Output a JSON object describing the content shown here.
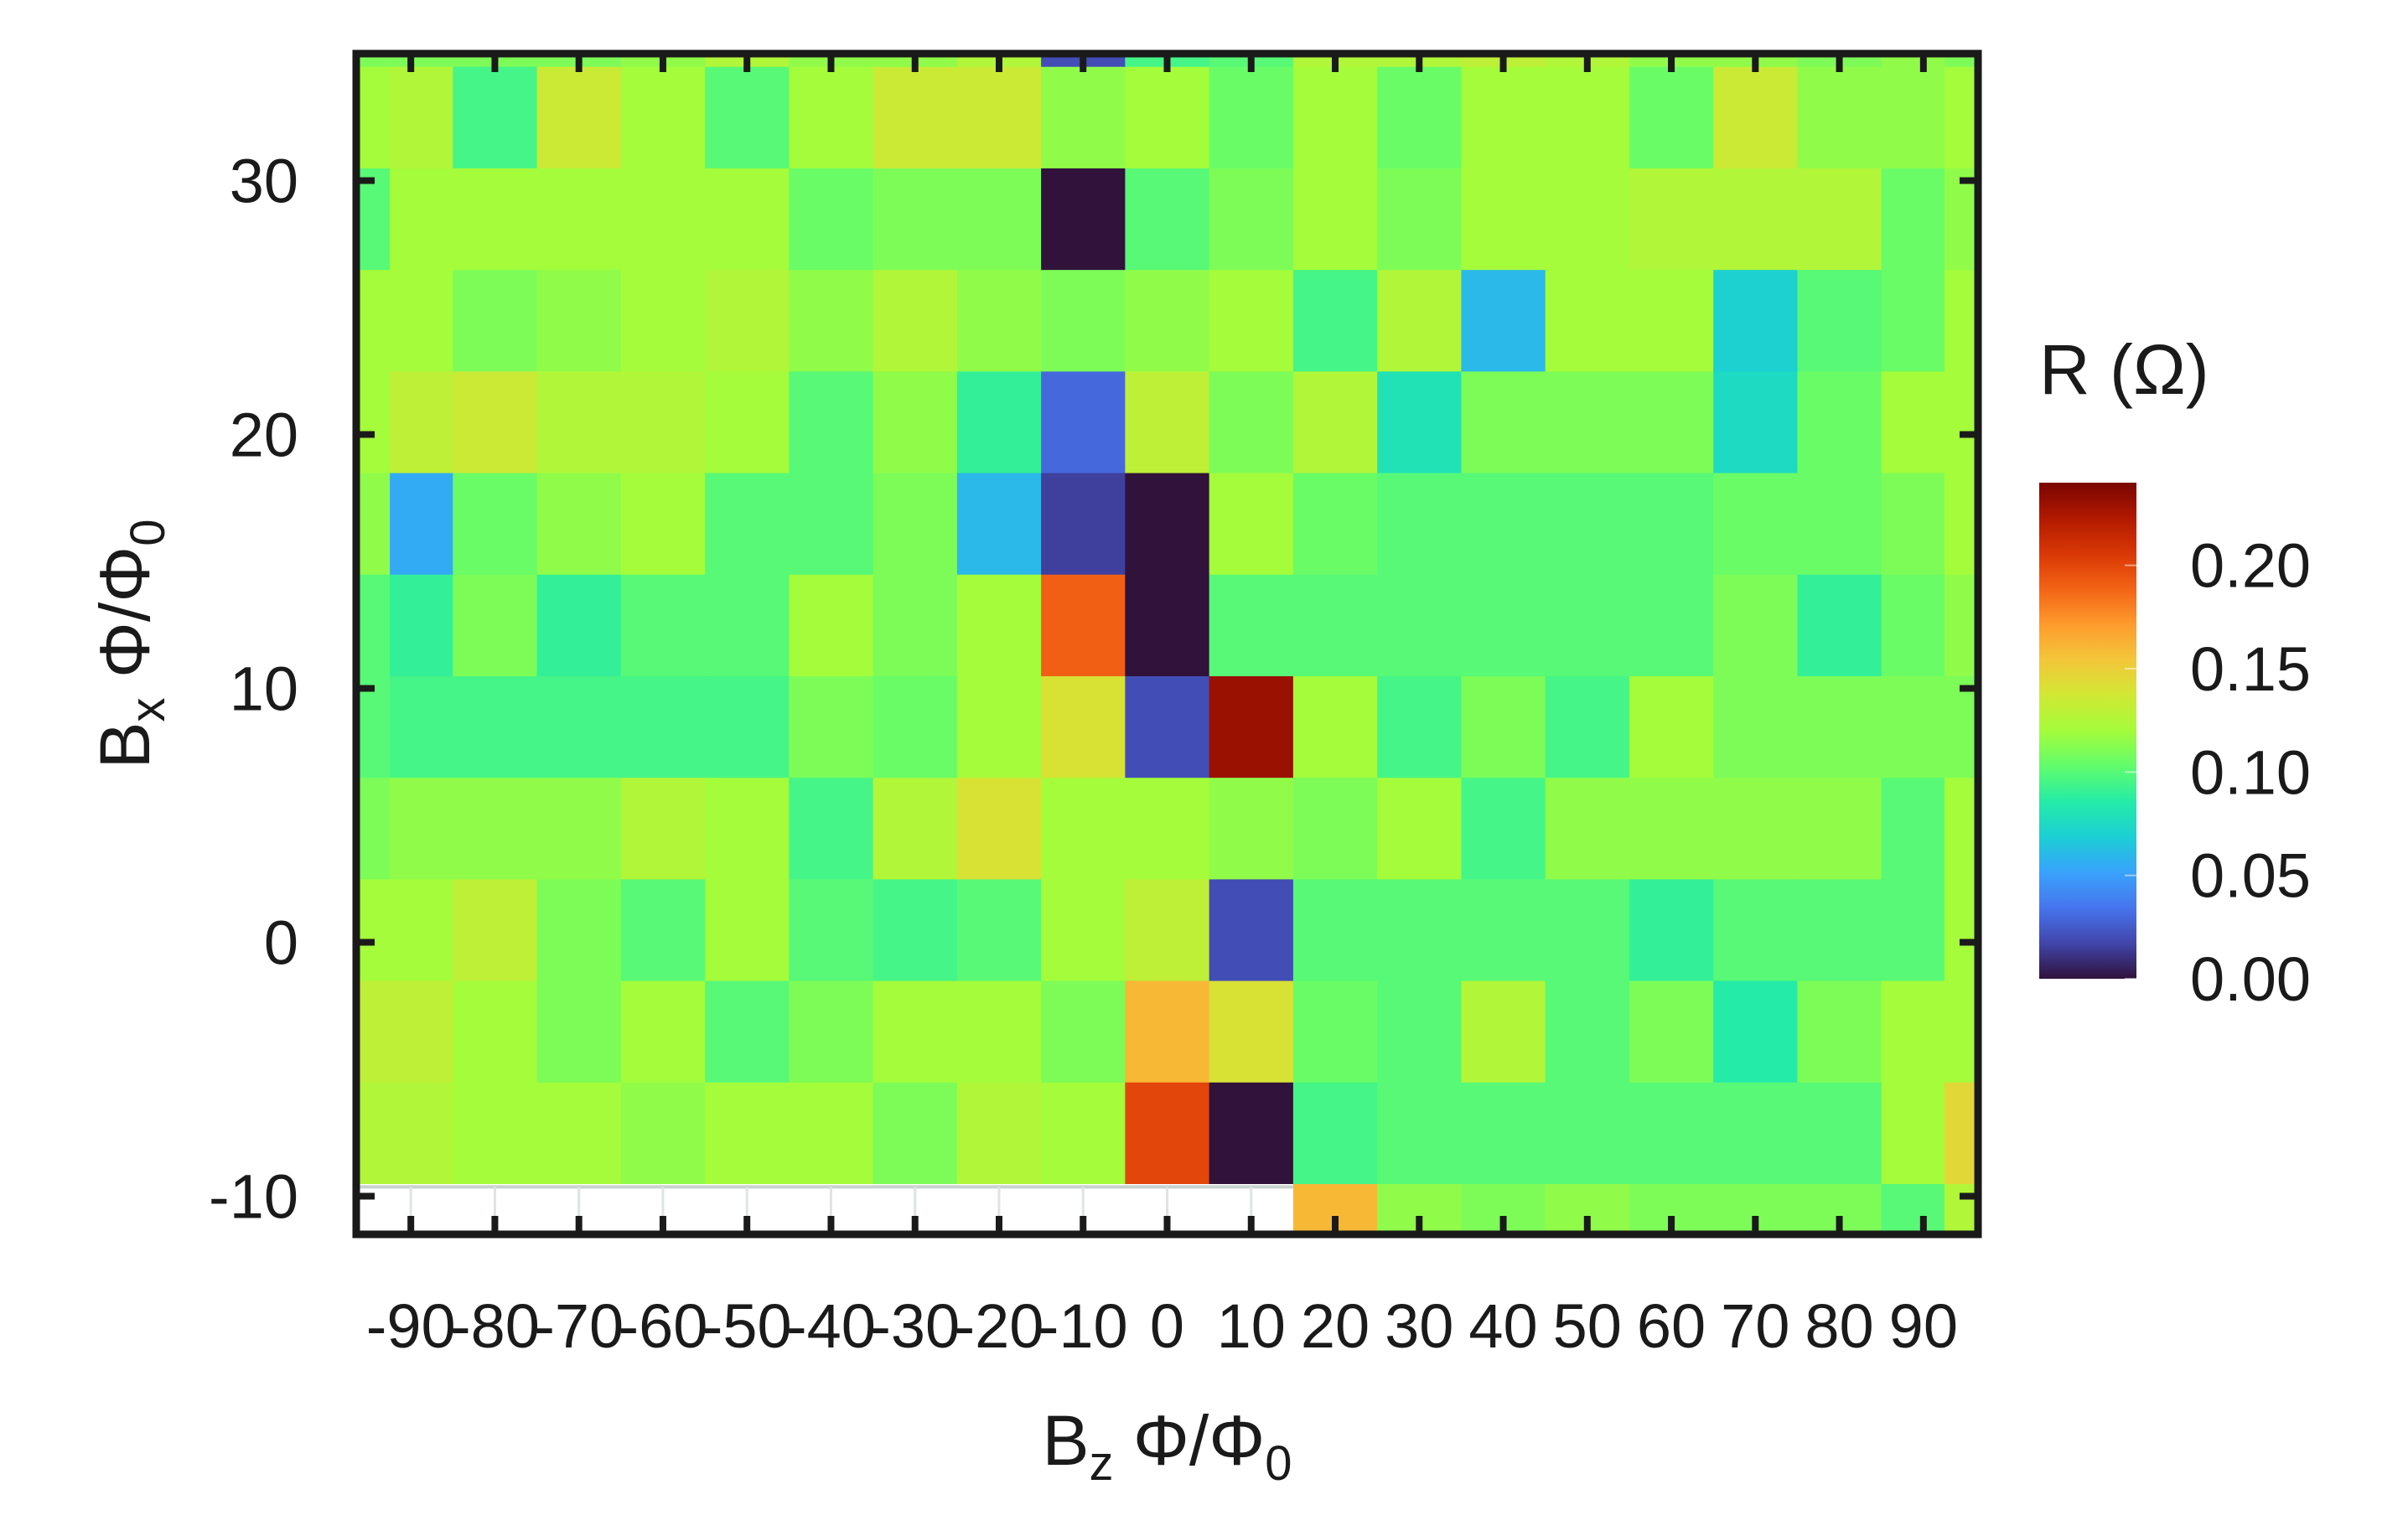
{
  "chart_data": {
    "type": "heatmap",
    "title": "",
    "xlabel": "B_z Φ/Φ_0",
    "ylabel": "B_x Φ/Φ_0",
    "x_title": {
      "main": "B",
      "sub": "z",
      "rest": " Φ/Φ",
      "sub2": "0"
    },
    "y_title": {
      "main": "B",
      "sub": "x",
      "rest": " Φ/Φ",
      "sub2": "0"
    },
    "x": [
      -95,
      -90,
      -80,
      -70,
      -60,
      -50,
      -40,
      -30,
      -20,
      -10,
      0,
      10,
      20,
      30,
      40,
      50,
      60,
      70,
      80,
      90,
      95
    ],
    "y": [
      -10,
      -5,
      0,
      5,
      10,
      15,
      20,
      25,
      30,
      35
    ],
    "x_ticks": [
      -90,
      -80,
      -70,
      -60,
      -50,
      -40,
      -30,
      -20,
      -10,
      0,
      10,
      20,
      30,
      40,
      50,
      60,
      70,
      80,
      90
    ],
    "x_tick_labels": [
      "-90",
      "-80",
      "-70",
      "-60",
      "-50",
      "-40",
      "-30",
      "-20",
      "-10",
      "0",
      "10",
      "20",
      "30",
      "40",
      "50",
      "60",
      "70",
      "80",
      "90"
    ],
    "y_ticks": [
      -10,
      0,
      10,
      20,
      30
    ],
    "y_tick_labels": [
      "-10",
      "0",
      "10",
      "20",
      "30"
    ],
    "xlim": [
      -96.5,
      96.5
    ],
    "ylim": [
      -11.5,
      35
    ],
    "z": [
      [
        null,
        null,
        null,
        null,
        null,
        null,
        null,
        null,
        null,
        null,
        null,
        null,
        0.16,
        0.115,
        0.11,
        0.115,
        0.11,
        0.11,
        0.11,
        0.1,
        0.125
      ],
      [
        0.125,
        0.125,
        0.12,
        0.12,
        0.115,
        0.12,
        0.12,
        0.11,
        0.125,
        0.12,
        0.2,
        0.0,
        0.095,
        0.1,
        0.1,
        0.1,
        0.1,
        0.1,
        0.1,
        0.12,
        0.145
      ],
      [
        0.13,
        0.13,
        0.12,
        0.11,
        0.12,
        0.1,
        0.11,
        0.12,
        0.12,
        0.11,
        0.16,
        0.14,
        0.105,
        0.1,
        0.125,
        0.1,
        0.11,
        0.085,
        0.11,
        0.12,
        0.12
      ],
      [
        0.12,
        0.12,
        0.13,
        0.11,
        0.1,
        0.12,
        0.1,
        0.095,
        0.1,
        0.12,
        0.13,
        0.02,
        0.1,
        0.1,
        0.1,
        0.1,
        0.09,
        0.1,
        0.1,
        0.1,
        0.12
      ],
      [
        0.11,
        0.115,
        0.115,
        0.115,
        0.125,
        0.12,
        0.095,
        0.125,
        0.14,
        0.12,
        0.12,
        0.115,
        0.11,
        0.12,
        0.095,
        0.115,
        0.115,
        0.115,
        0.115,
        0.1,
        0.12
      ],
      [
        0.1,
        0.095,
        0.095,
        0.095,
        0.095,
        0.095,
        0.11,
        0.105,
        0.12,
        0.14,
        0.02,
        0.23,
        0.12,
        0.095,
        0.11,
        0.095,
        0.12,
        0.11,
        0.11,
        0.11,
        0.11
      ],
      [
        0.1,
        0.09,
        0.11,
        0.09,
        0.1,
        0.1,
        0.12,
        0.11,
        0.12,
        0.19,
        0.0,
        0.1,
        0.1,
        0.1,
        0.1,
        0.1,
        0.1,
        0.11,
        0.09,
        0.105,
        0.115
      ],
      [
        0.115,
        0.055,
        0.105,
        0.115,
        0.12,
        0.1,
        0.1,
        0.11,
        0.06,
        0.015,
        0.0,
        0.12,
        0.105,
        0.1,
        0.1,
        0.1,
        0.1,
        0.105,
        0.105,
        0.11,
        0.12
      ],
      [
        0.12,
        0.13,
        0.135,
        0.125,
        0.125,
        0.12,
        0.1,
        0.115,
        0.09,
        0.03,
        0.13,
        0.11,
        0.125,
        0.08,
        0.11,
        0.11,
        0.11,
        0.075,
        0.105,
        0.12,
        0.12
      ],
      [
        0.12,
        0.12,
        0.11,
        0.115,
        0.12,
        0.125,
        0.115,
        0.125,
        0.115,
        0.11,
        0.115,
        0.12,
        0.095,
        0.125,
        0.06,
        0.12,
        0.12,
        0.07,
        0.1,
        0.105,
        0.12
      ],
      [
        0.1,
        0.12,
        0.12,
        0.12,
        0.12,
        0.12,
        0.105,
        0.11,
        0.11,
        0.0,
        0.1,
        0.11,
        0.12,
        0.11,
        0.12,
        0.12,
        0.125,
        0.125,
        0.125,
        0.105,
        0.115
      ],
      [
        0.12,
        0.125,
        0.095,
        0.135,
        0.12,
        0.1,
        0.12,
        0.135,
        0.135,
        0.115,
        0.12,
        0.105,
        0.12,
        0.105,
        0.12,
        0.12,
        0.105,
        0.135,
        0.115,
        0.115,
        0.12
      ],
      [
        0.11,
        0.11,
        0.11,
        0.11,
        0.115,
        0.125,
        0.115,
        0.115,
        0.125,
        0.02,
        0.095,
        0.1,
        0.125,
        0.125,
        0.13,
        0.125,
        0.115,
        0.115,
        0.11,
        0.115,
        0.11
      ]
    ],
    "row_y": [
      -11,
      -7.5,
      -3.5,
      0.5,
      4.5,
      8.5,
      12.5,
      16.5,
      20.5,
      24.5,
      28.5,
      32.5,
      35
    ],
    "row_edges": [
      -11.5,
      -9.5,
      -5.5,
      -1.5,
      2.5,
      6.5,
      10.5,
      14.5,
      18.5,
      22.5,
      26.5,
      30.5,
      34.5,
      35
    ],
    "colorbar": {
      "label": "R (Ω)",
      "range": [
        0,
        0.24
      ],
      "ticks": [
        0.0,
        0.05,
        0.1,
        0.15,
        0.2
      ],
      "tick_labels": [
        "0.00",
        "0.05",
        "0.10",
        "0.15",
        "0.20"
      ],
      "colormap": "turbo",
      "stops": [
        "#30123b",
        "#4145ab",
        "#4675ed",
        "#39a2fc",
        "#1bcfd4",
        "#24eca6",
        "#61fc6c",
        "#a4fc3b",
        "#d1e834",
        "#f3c63a",
        "#fe9b2d",
        "#f36315",
        "#d93806",
        "#b11901",
        "#7a0402"
      ]
    },
    "nan_color": "#ffffff",
    "grid": false,
    "legend": "colorbar right"
  }
}
